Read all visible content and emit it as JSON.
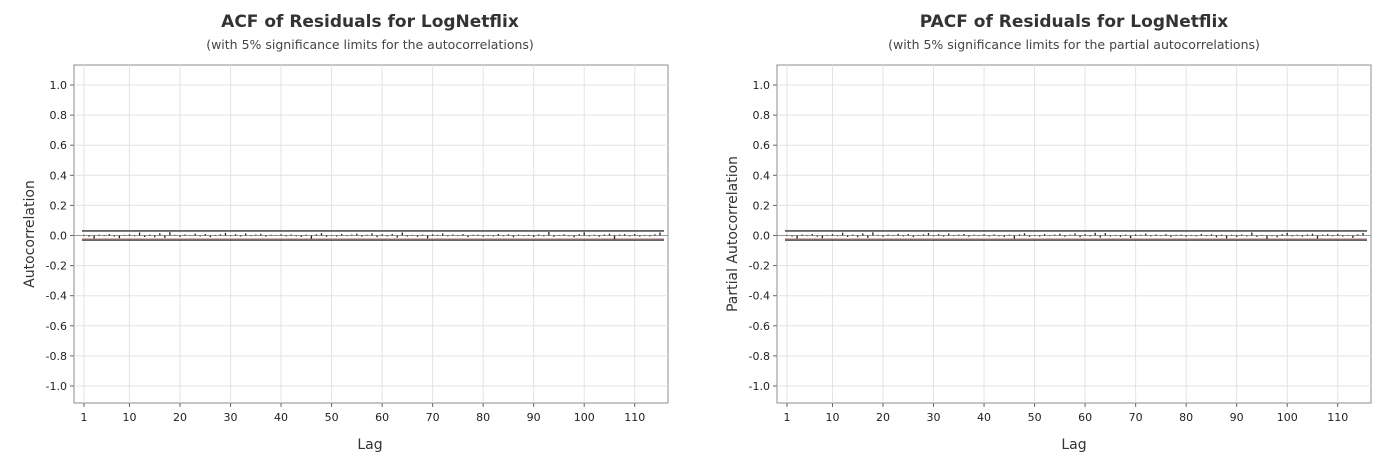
{
  "chart_data": [
    {
      "type": "bar",
      "title": "ACF of Residuals for LogNetflix",
      "subtitle": "(with 5% significance limits for the autocorrelations)",
      "xlabel": "Lag",
      "ylabel": "Autocorrelation",
      "xlim": [
        0,
        116
      ],
      "ylim": [
        -1.1,
        1.1
      ],
      "x_ticks": [
        "1",
        "10",
        "20",
        "30",
        "40",
        "50",
        "60",
        "70",
        "80",
        "90",
        "100",
        "110"
      ],
      "y_ticks": [
        "1.0",
        "0.8",
        "0.6",
        "0.4",
        "0.2",
        "0.0",
        "-0.2",
        "-0.4",
        "-0.6",
        "-0.8",
        "-1.0"
      ],
      "significance_limits": [
        0.03,
        -0.03
      ],
      "grid": true,
      "lags": [
        1,
        2,
        3,
        4,
        5,
        6,
        7,
        8,
        9,
        10,
        11,
        12,
        13,
        14,
        15,
        16,
        17,
        18,
        19,
        20,
        21,
        22,
        23,
        24,
        25,
        26,
        27,
        28,
        29,
        30,
        31,
        32,
        33,
        34,
        35,
        36,
        37,
        38,
        39,
        40,
        41,
        42,
        43,
        44,
        45,
        46,
        47,
        48,
        49,
        50,
        51,
        52,
        53,
        54,
        55,
        56,
        57,
        58,
        59,
        60,
        61,
        62,
        63,
        64,
        65,
        66,
        67,
        68,
        69,
        70,
        71,
        72,
        73,
        74,
        75,
        76,
        77,
        78,
        79,
        80,
        81,
        82,
        83,
        84,
        85,
        86,
        87,
        88,
        89,
        90,
        91,
        92,
        93,
        94,
        95,
        96,
        97,
        98,
        99,
        100,
        101,
        102,
        103,
        104,
        105,
        106,
        107,
        108,
        109,
        110,
        111,
        112,
        113,
        114,
        115
      ],
      "values": [
        0.005,
        -0.008,
        -0.02,
        0.006,
        -0.004,
        0.01,
        -0.007,
        -0.018,
        0.004,
        0.008,
        -0.005,
        0.02,
        -0.01,
        0.006,
        -0.012,
        0.015,
        -0.016,
        0.022,
        0.004,
        -0.009,
        0.007,
        -0.003,
        0.012,
        -0.006,
        0.01,
        -0.011,
        0.004,
        0.008,
        0.018,
        -0.005,
        0.009,
        -0.007,
        0.014,
        -0.004,
        0.006,
        0.011,
        -0.008,
        0.005,
        -0.003,
        0.009,
        -0.006,
        0.007,
        -0.005,
        -0.01,
        0.006,
        -0.022,
        0.008,
        0.016,
        -0.009,
        0.004,
        -0.007,
        0.01,
        -0.004,
        0.006,
        0.012,
        -0.008,
        0.005,
        0.015,
        -0.011,
        0.009,
        -0.006,
        0.01,
        -0.014,
        0.02,
        -0.007,
        0.004,
        -0.009,
        0.006,
        -0.019,
        0.008,
        0.005,
        0.014,
        -0.006,
        0.007,
        -0.004,
        0.009,
        -0.011,
        0.005,
        0.006,
        -0.008,
        0.004,
        -0.006,
        0.01,
        -0.005,
        0.008,
        -0.012,
        0.006,
        -0.004,
        0.005,
        -0.01,
        0.007,
        -0.006,
        0.023,
        -0.009,
        0.004,
        0.008,
        -0.005,
        -0.012,
        0.009,
        0.021,
        -0.006,
        0.005,
        -0.008,
        0.007,
        0.012,
        -0.024,
        0.006,
        0.009,
        -0.005,
        0.01,
        -0.007,
        0.004,
        -0.006,
        0.008,
        0.02
      ]
    },
    {
      "type": "bar",
      "title": "PACF of Residuals for LogNetflix",
      "subtitle": "(with 5% significance limits for the partial autocorrelations)",
      "xlabel": "Lag",
      "ylabel": "Partial Autocorrelation",
      "xlim": [
        0,
        116
      ],
      "ylim": [
        -1.1,
        1.1
      ],
      "x_ticks": [
        "1",
        "10",
        "20",
        "30",
        "40",
        "50",
        "60",
        "70",
        "80",
        "90",
        "100",
        "110"
      ],
      "y_ticks": [
        "1.0",
        "0.8",
        "0.6",
        "0.4",
        "0.2",
        "0.0",
        "-0.2",
        "-0.4",
        "-0.6",
        "-0.8",
        "-1.0"
      ],
      "significance_limits": [
        0.03,
        -0.03
      ],
      "grid": true,
      "lags": [
        1,
        2,
        3,
        4,
        5,
        6,
        7,
        8,
        9,
        10,
        11,
        12,
        13,
        14,
        15,
        16,
        17,
        18,
        19,
        20,
        21,
        22,
        23,
        24,
        25,
        26,
        27,
        28,
        29,
        30,
        31,
        32,
        33,
        34,
        35,
        36,
        37,
        38,
        39,
        40,
        41,
        42,
        43,
        44,
        45,
        46,
        47,
        48,
        49,
        50,
        51,
        52,
        53,
        54,
        55,
        56,
        57,
        58,
        59,
        60,
        61,
        62,
        63,
        64,
        65,
        66,
        67,
        68,
        69,
        70,
        71,
        72,
        73,
        74,
        75,
        76,
        77,
        78,
        79,
        80,
        81,
        82,
        83,
        84,
        85,
        86,
        87,
        88,
        89,
        90,
        91,
        92,
        93,
        94,
        95,
        96,
        97,
        98,
        99,
        100,
        101,
        102,
        103,
        104,
        105,
        106,
        107,
        108,
        109,
        110,
        111,
        112,
        113,
        114,
        115
      ],
      "values": [
        0.005,
        -0.007,
        -0.02,
        0.006,
        -0.004,
        0.01,
        -0.008,
        -0.018,
        0.004,
        0.009,
        -0.005,
        0.019,
        -0.01,
        0.006,
        -0.012,
        0.014,
        -0.016,
        0.021,
        0.004,
        -0.009,
        0.007,
        -0.003,
        0.011,
        -0.006,
        0.01,
        -0.011,
        0.004,
        0.008,
        0.016,
        -0.005,
        0.009,
        -0.007,
        0.013,
        -0.004,
        0.006,
        0.01,
        -0.008,
        0.005,
        -0.003,
        0.009,
        -0.006,
        0.007,
        -0.005,
        -0.01,
        0.006,
        -0.021,
        0.008,
        0.015,
        -0.009,
        0.004,
        -0.007,
        0.01,
        -0.004,
        0.006,
        0.012,
        -0.008,
        0.005,
        0.014,
        -0.011,
        0.009,
        -0.006,
        0.018,
        -0.014,
        0.016,
        -0.007,
        0.004,
        -0.009,
        0.006,
        -0.017,
        0.008,
        0.005,
        0.013,
        -0.006,
        0.007,
        -0.004,
        0.009,
        -0.01,
        0.005,
        0.006,
        -0.008,
        0.004,
        -0.006,
        0.01,
        -0.005,
        0.008,
        -0.012,
        0.006,
        -0.019,
        0.005,
        -0.01,
        0.007,
        -0.006,
        0.02,
        -0.009,
        0.004,
        -0.022,
        -0.005,
        -0.012,
        0.009,
        0.018,
        -0.006,
        0.005,
        -0.008,
        0.007,
        0.012,
        -0.02,
        0.006,
        0.009,
        -0.005,
        0.01,
        -0.007,
        0.004,
        -0.016,
        0.008,
        0.017
      ]
    }
  ]
}
